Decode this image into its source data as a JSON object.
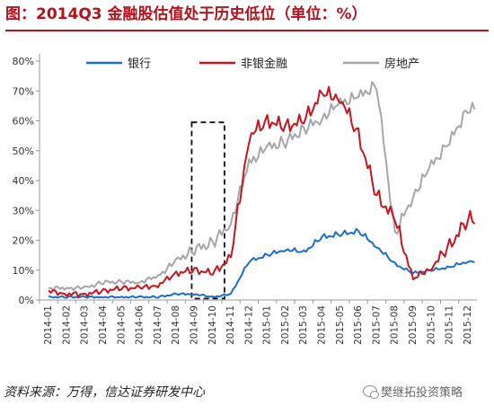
{
  "header": {
    "title": "图：2014Q3 金融股估值处于历史低位（单位：%）"
  },
  "footer": {
    "source": "资料来源：万得，信达证券研发中心",
    "brand": "樊继拓投资策略"
  },
  "colors": {
    "bank": "#1c6ec9",
    "nonbank": "#c8141c",
    "realestate": "#a6a6a6",
    "title": "#b5121b"
  },
  "chart_data": {
    "type": "line",
    "title": "2014Q3 金融股估值处于历史低位",
    "xlabel": "",
    "ylabel": "",
    "ylim": [
      0,
      80
    ],
    "yticks": [
      0,
      10,
      20,
      30,
      40,
      50,
      60,
      70,
      80
    ],
    "ytick_labels": [
      "0%",
      "10%",
      "20%",
      "30%",
      "40%",
      "50%",
      "60%",
      "70%",
      "80%"
    ],
    "x": [
      "2014-01",
      "2014-02",
      "2014-03",
      "2014-04",
      "2014-05",
      "2014-06",
      "2014-07",
      "2014-08",
      "2014-09",
      "2014-10",
      "2014-11",
      "2014-12",
      "2015-01",
      "2015-02",
      "2015-03",
      "2015-04",
      "2015-05",
      "2015-06",
      "2015-07",
      "2015-08",
      "2015-09",
      "2015-10",
      "2015-11",
      "2015-12"
    ],
    "grid": false,
    "legend_position": "top",
    "highlight_box": {
      "x_start": "2014-09",
      "x_end": "2014-11",
      "style": "dashed"
    },
    "series": [
      {
        "name": "银行",
        "key": "bank",
        "values": [
          1,
          1,
          1,
          1,
          1,
          1,
          1,
          2,
          2,
          1,
          2,
          13,
          15,
          17,
          16,
          21,
          22,
          23,
          18,
          12,
          9,
          10,
          11,
          13
        ]
      },
      {
        "name": "非银金融",
        "key": "nonbank",
        "values": [
          3,
          2,
          2,
          3,
          4,
          4,
          5,
          9,
          10,
          9,
          14,
          55,
          60,
          58,
          60,
          69,
          68,
          55,
          35,
          27,
          7,
          11,
          18,
          27
        ]
      },
      {
        "name": "房地产",
        "key": "realestate",
        "values": [
          4,
          4,
          4,
          6,
          6,
          6,
          8,
          13,
          17,
          19,
          26,
          46,
          51,
          53,
          57,
          61,
          66,
          68,
          72,
          22,
          35,
          45,
          53,
          64
        ]
      }
    ]
  }
}
